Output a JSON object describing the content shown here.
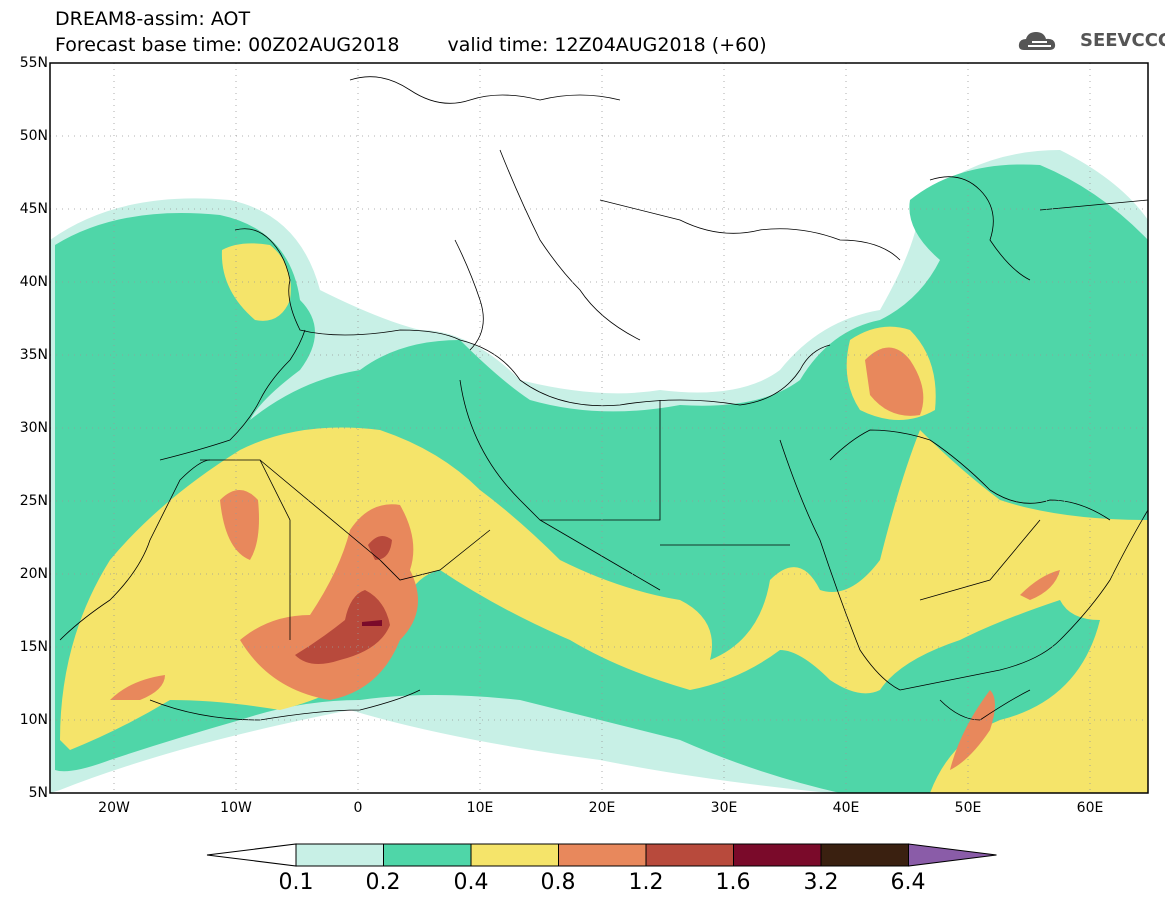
{
  "header": {
    "line1": "DREAM8-assim: AOT",
    "base": "Forecast base time: 00Z02AUG2018",
    "valid": "valid time: 12Z04AUG2018 (+60)"
  },
  "logo": {
    "text": "SEEVCCC",
    "icon": "cloud-icon"
  },
  "map": {
    "lat_ticks": [
      "55N",
      "50N",
      "45N",
      "40N",
      "35N",
      "30N",
      "25N",
      "20N",
      "15N",
      "10N",
      "5N"
    ],
    "lon_ticks": [
      "20W",
      "10W",
      "0",
      "10E",
      "20E",
      "30E",
      "40E",
      "50E",
      "60E"
    ],
    "lat_range": [
      5,
      55
    ],
    "lon_range": [
      -25,
      65
    ],
    "grid": "dotted"
  },
  "colorbar": {
    "labels": [
      "0.1",
      "0.2",
      "0.4",
      "0.8",
      "1.2",
      "1.6",
      "3.2",
      "6.4"
    ],
    "colors": [
      "#ffffff",
      "#c8f0e6",
      "#4fd6a8",
      "#f5e46a",
      "#e8885c",
      "#b84a3c",
      "#7a0a2a",
      "#3a2010",
      "#8a5ca8"
    ]
  },
  "palette": {
    "c1": "#c8f0e6",
    "c2": "#4fd6a8",
    "c3": "#f5e46a",
    "c4": "#e8885c",
    "c5": "#b84a3c",
    "c6": "#7a0a2a"
  }
}
